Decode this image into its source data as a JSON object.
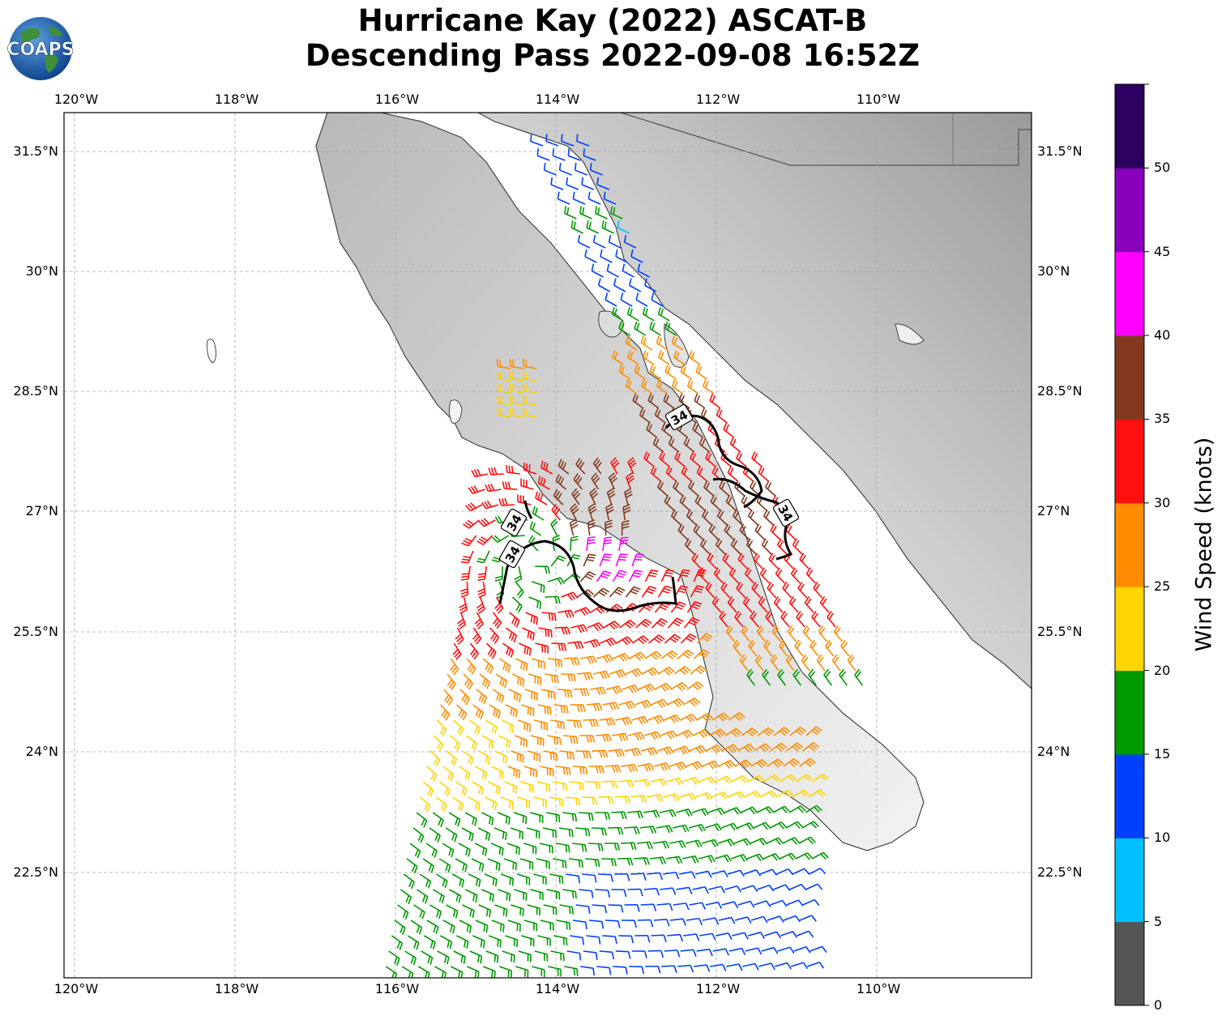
{
  "title_line1": "Hurricane Kay (2022) ASCAT-B",
  "title_line2": "Descending Pass 2022-09-08 16:52Z",
  "logo_text": "COAPS",
  "lon_labels": [
    "120°W",
    "118°W",
    "116°W",
    "114°W",
    "112°W",
    "110°W"
  ],
  "lat_labels": [
    "31.5°N",
    "30°N",
    "28.5°N",
    "27°N",
    "25.5°N",
    "24°N",
    "22.5°N"
  ],
  "contour_label": "34",
  "colorbar": {
    "title": "Wind Speed (knots)",
    "ticks": [
      "0",
      "5",
      "10",
      "15",
      "20",
      "25",
      "30",
      "35",
      "40",
      "45",
      "50"
    ],
    "colors": [
      "#555555",
      "#00bfff",
      "#0040ff",
      "#009900",
      "#ffd500",
      "#ff8c00",
      "#ff0f0f",
      "#82391f",
      "#ff00ff",
      "#8800bb",
      "#2b005e"
    ]
  }
}
